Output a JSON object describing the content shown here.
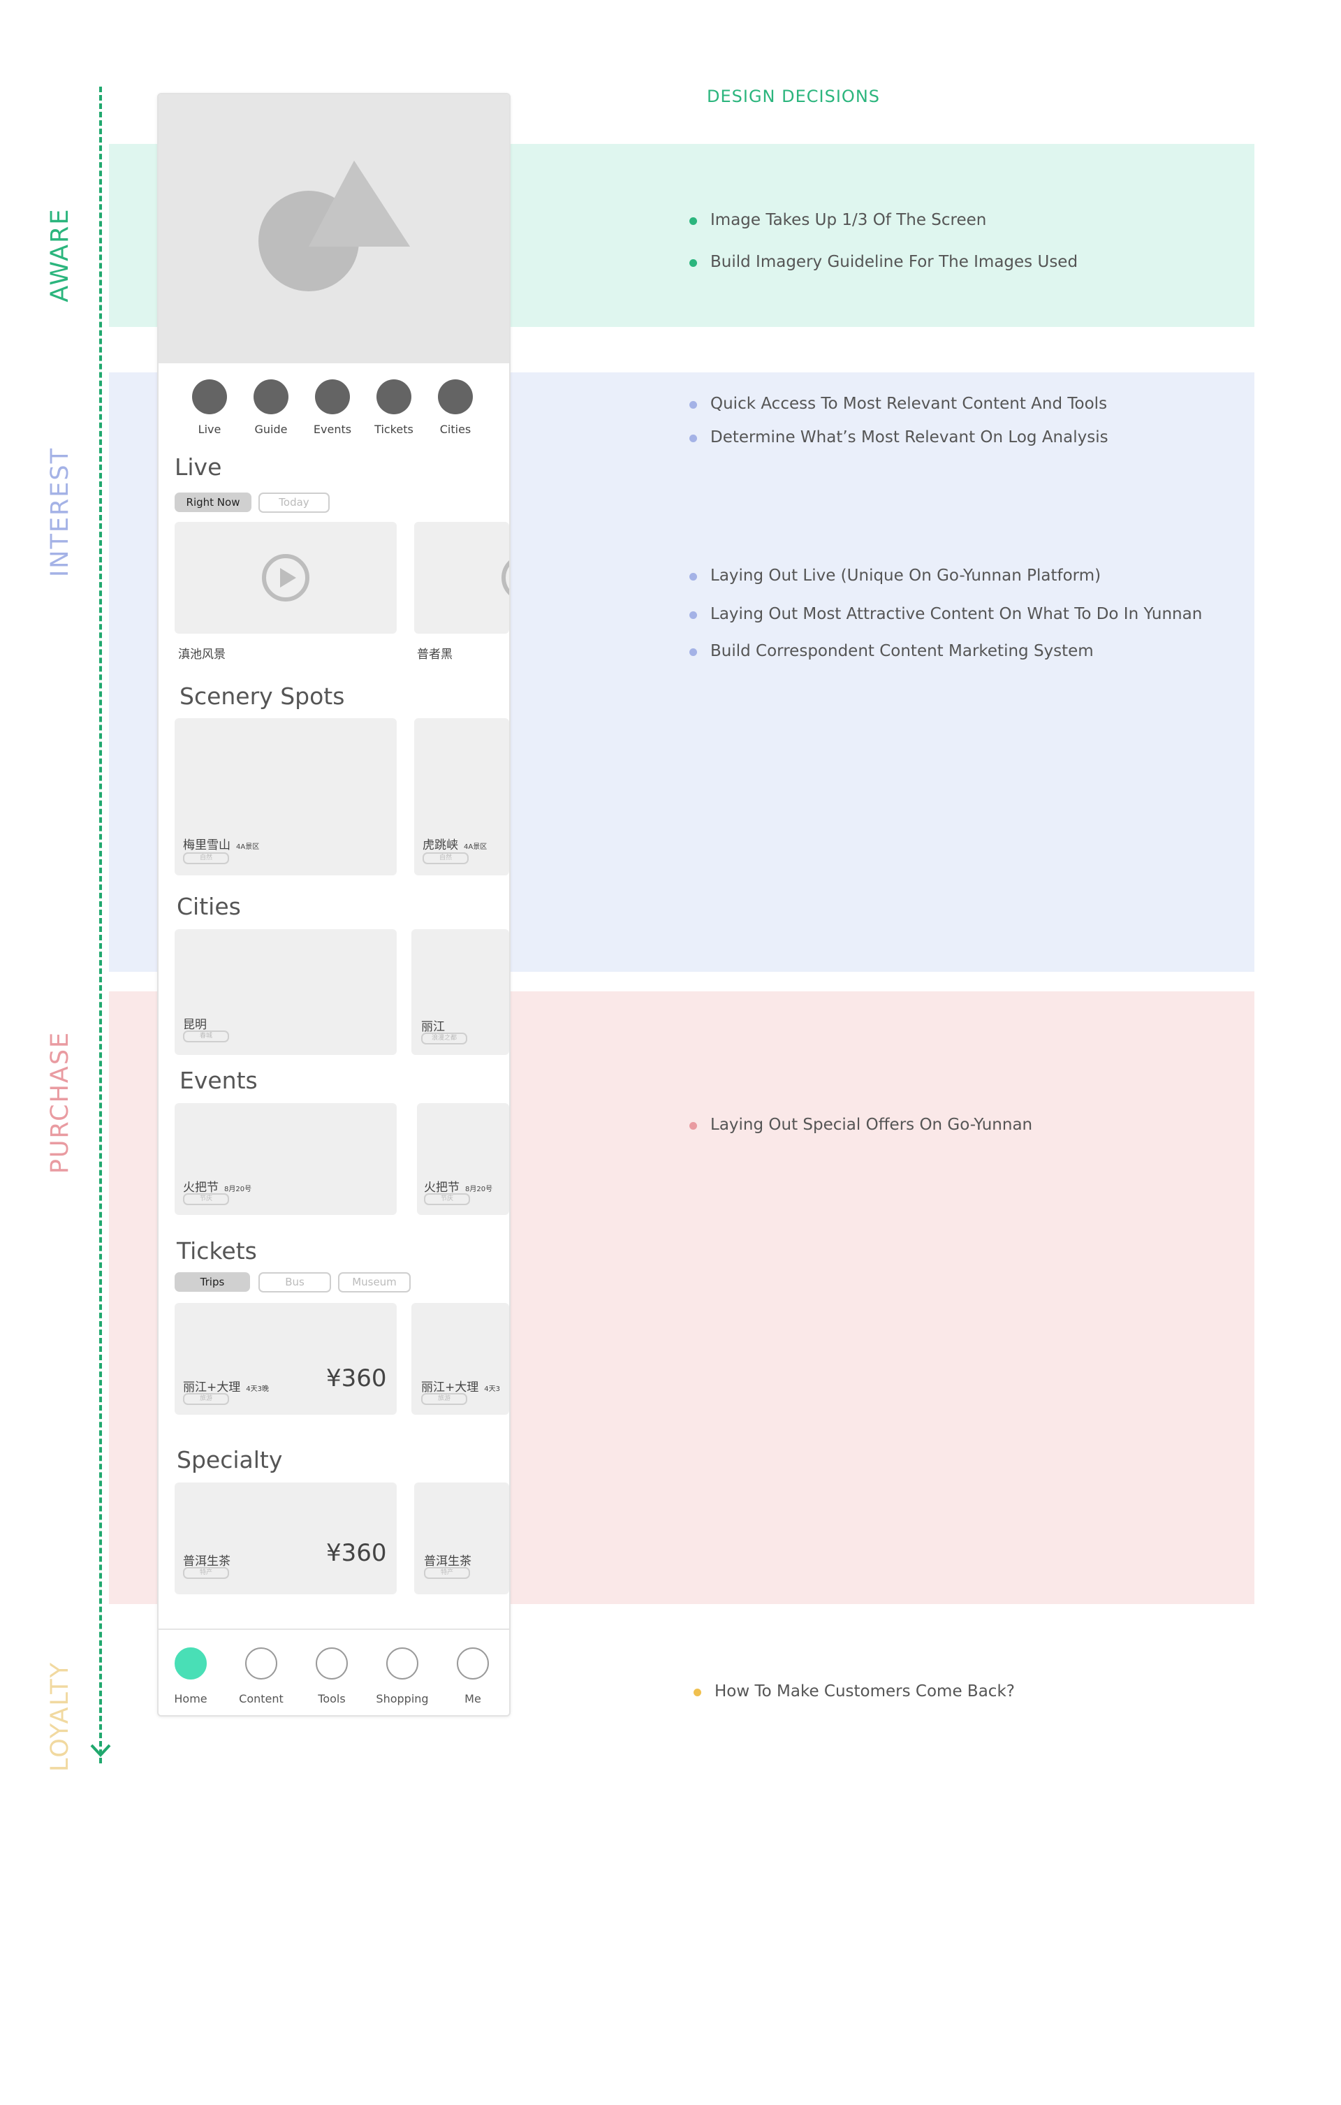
{
  "stages": {
    "aware": "AWARE",
    "interest": "INTEREST",
    "purchase": "PURCHASE",
    "loyalty": "LOYALTY"
  },
  "design_title": "DESIGN DECISIONS",
  "notes": {
    "aware": [
      "Image Takes Up 1/3 Of The Screen",
      "Build Imagery Guideline For The Images Used"
    ],
    "interest_a": [
      "Quick Access To Most Relevant Content And Tools",
      "Determine What’s Most Relevant On Log Analysis"
    ],
    "interest_b": [
      "Laying Out Live (Unique On Go-Yunnan Platform)",
      "Laying Out Most Attractive Content On What To Do In Yunnan",
      "Build Correspondent Content Marketing System"
    ],
    "purchase": [
      "Laying Out Special Offers On Go-Yunnan"
    ],
    "loyalty": [
      "How To Make Customers Come Back?"
    ]
  },
  "colors": {
    "aware": "#2bb57d",
    "interest": "#a4b2e6",
    "purchase": "#e99ba1",
    "loyalty": "#f0c04f",
    "active_tab": "#49dfb6"
  },
  "phone": {
    "quick_access": [
      "Live",
      "Guide",
      "Events",
      "Tickets",
      "Cities"
    ],
    "live": {
      "title": "Live",
      "pills": [
        "Right Now",
        "Today"
      ],
      "cards": [
        "滇池风景",
        "普者黑"
      ]
    },
    "scenery": {
      "title": "Scenery Spots",
      "cards": [
        {
          "name": "梅里雪山",
          "level": "4A景区",
          "tag": "自然"
        },
        {
          "name": "虎跳峡",
          "level": "4A景区",
          "tag": "自然"
        }
      ]
    },
    "cities": {
      "title": "Cities",
      "cards": [
        {
          "name": "昆明",
          "tag": "春城"
        },
        {
          "name": "丽江",
          "tag": "浪漫之都"
        }
      ]
    },
    "events": {
      "title": "Events",
      "cards": [
        {
          "name": "火把节",
          "date": "8月20号",
          "tag": "节庆"
        },
        {
          "name": "火把节",
          "date": "8月20号",
          "tag": "节庆"
        }
      ]
    },
    "tickets": {
      "title": "Tickets",
      "pills": [
        "Trips",
        "Bus",
        "Museum"
      ],
      "cards": [
        {
          "name": "丽江+大理",
          "days": "4天3晚",
          "tag": "旅游",
          "price": "¥360"
        },
        {
          "name": "丽江+大理",
          "days": "4天3",
          "tag": "旅游"
        }
      ]
    },
    "specialty": {
      "title": "Specialty",
      "cards": [
        {
          "name": "普洱生茶",
          "tag": "特产",
          "price": "¥360"
        },
        {
          "name": "普洱生茶",
          "tag": "特产"
        }
      ]
    },
    "tabs": [
      "Home",
      "Content",
      "Tools",
      "Shopping",
      "Me"
    ]
  }
}
